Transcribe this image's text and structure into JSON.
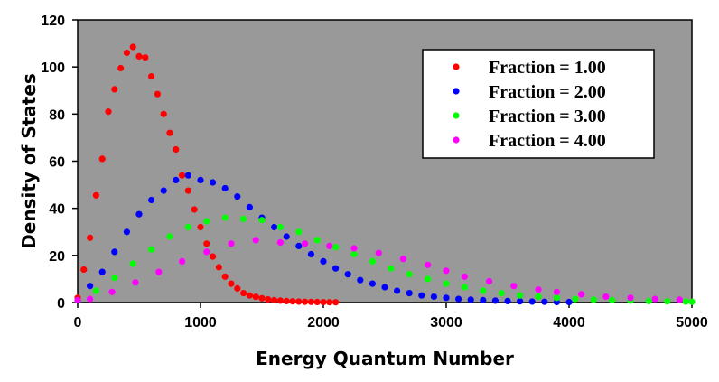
{
  "chart_data": {
    "type": "scatter",
    "title": "",
    "xlabel": "Energy Quantum Number",
    "ylabel": "Density of States",
    "xlim": [
      0,
      5000
    ],
    "ylim": [
      0,
      120
    ],
    "xticks": [
      0,
      1000,
      2000,
      3000,
      4000,
      5000
    ],
    "yticks": [
      0,
      20,
      40,
      60,
      80,
      100,
      120
    ],
    "plot_background": "#999999",
    "grid": false,
    "legend_position": "top-right",
    "series": [
      {
        "name": "Fraction = 1.00",
        "color": "#ff0000",
        "points": [
          [
            0,
            2
          ],
          [
            50,
            14
          ],
          [
            100,
            27.5
          ],
          [
            150,
            45.5
          ],
          [
            200,
            61
          ],
          [
            250,
            81
          ],
          [
            300,
            90.5
          ],
          [
            350,
            99.5
          ],
          [
            400,
            106
          ],
          [
            450,
            108.5
          ],
          [
            500,
            104.5
          ],
          [
            550,
            104
          ],
          [
            600,
            96
          ],
          [
            650,
            88.5
          ],
          [
            700,
            80
          ],
          [
            750,
            72
          ],
          [
            800,
            65
          ],
          [
            850,
            54
          ],
          [
            900,
            47.5
          ],
          [
            950,
            39.5
          ],
          [
            1000,
            32
          ],
          [
            1050,
            25
          ],
          [
            1100,
            19.5
          ],
          [
            1150,
            15
          ],
          [
            1200,
            11
          ],
          [
            1250,
            8
          ],
          [
            1300,
            6
          ],
          [
            1350,
            4
          ],
          [
            1400,
            3
          ],
          [
            1450,
            2.4
          ],
          [
            1500,
            1.8
          ],
          [
            1550,
            1.3
          ],
          [
            1600,
            1
          ],
          [
            1650,
            0.8
          ],
          [
            1700,
            0.6
          ],
          [
            1750,
            0.5
          ],
          [
            1800,
            0.4
          ],
          [
            1850,
            0.3
          ],
          [
            1900,
            0.25
          ],
          [
            1950,
            0.2
          ],
          [
            2000,
            0.15
          ],
          [
            2050,
            0.12
          ],
          [
            2100,
            0.1
          ]
        ]
      },
      {
        "name": "Fraction = 2.00",
        "color": "#0000ff",
        "points": [
          [
            0,
            1
          ],
          [
            100,
            7
          ],
          [
            200,
            13
          ],
          [
            300,
            21.5
          ],
          [
            400,
            30
          ],
          [
            500,
            37.5
          ],
          [
            600,
            43.5
          ],
          [
            700,
            47.5
          ],
          [
            800,
            52
          ],
          [
            900,
            54
          ],
          [
            1000,
            52
          ],
          [
            1100,
            51
          ],
          [
            1200,
            48.5
          ],
          [
            1300,
            45
          ],
          [
            1400,
            40.5
          ],
          [
            1500,
            36
          ],
          [
            1600,
            32
          ],
          [
            1700,
            28
          ],
          [
            1800,
            24
          ],
          [
            1900,
            20.5
          ],
          [
            2000,
            17.5
          ],
          [
            2100,
            14.5
          ],
          [
            2200,
            12
          ],
          [
            2300,
            9.5
          ],
          [
            2400,
            8
          ],
          [
            2500,
            6.5
          ],
          [
            2600,
            5
          ],
          [
            2700,
            4
          ],
          [
            2800,
            3
          ],
          [
            2900,
            2.5
          ],
          [
            3000,
            2
          ],
          [
            3100,
            1.5
          ],
          [
            3200,
            1.2
          ],
          [
            3300,
            1
          ],
          [
            3400,
            0.8
          ],
          [
            3500,
            0.6
          ],
          [
            3600,
            0.5
          ],
          [
            3700,
            0.4
          ],
          [
            3800,
            0.3
          ],
          [
            3900,
            0.2
          ],
          [
            4000,
            0.2
          ]
        ]
      },
      {
        "name": "Fraction = 3.00",
        "color": "#00ff00",
        "points": [
          [
            0,
            1
          ],
          [
            150,
            5
          ],
          [
            300,
            10.5
          ],
          [
            450,
            16.5
          ],
          [
            600,
            22.5
          ],
          [
            750,
            28
          ],
          [
            900,
            32
          ],
          [
            1050,
            34.5
          ],
          [
            1200,
            36
          ],
          [
            1350,
            35.5
          ],
          [
            1500,
            35
          ],
          [
            1650,
            32
          ],
          [
            1800,
            30
          ],
          [
            1950,
            26.5
          ],
          [
            2100,
            23.5
          ],
          [
            2250,
            20.5
          ],
          [
            2400,
            17.5
          ],
          [
            2550,
            14.5
          ],
          [
            2700,
            12
          ],
          [
            2850,
            10
          ],
          [
            3000,
            8
          ],
          [
            3150,
            6.5
          ],
          [
            3300,
            5
          ],
          [
            3450,
            4
          ],
          [
            3600,
            3
          ],
          [
            3750,
            2.5
          ],
          [
            3900,
            2
          ],
          [
            4050,
            1.5
          ],
          [
            4200,
            1.2
          ],
          [
            4350,
            1
          ],
          [
            4500,
            0.8
          ],
          [
            4650,
            0.6
          ],
          [
            4800,
            0.5
          ],
          [
            4950,
            0.4
          ],
          [
            5000,
            0.3
          ]
        ]
      },
      {
        "name": "Fraction = 4.00",
        "color": "#ff00ff",
        "points": [
          [
            0,
            1
          ],
          [
            100,
            1.5
          ],
          [
            280,
            4.5
          ],
          [
            470,
            8.5
          ],
          [
            660,
            13
          ],
          [
            850,
            17.5
          ],
          [
            1050,
            21.5
          ],
          [
            1250,
            25
          ],
          [
            1450,
            26.5
          ],
          [
            1650,
            25.5
          ],
          [
            1850,
            25
          ],
          [
            2050,
            24
          ],
          [
            2250,
            23
          ],
          [
            2450,
            21
          ],
          [
            2650,
            18.5
          ],
          [
            2850,
            16
          ],
          [
            3000,
            13.5
          ],
          [
            3150,
            11
          ],
          [
            3350,
            9
          ],
          [
            3550,
            7
          ],
          [
            3750,
            5.5
          ],
          [
            3900,
            4.5
          ],
          [
            4100,
            3.5
          ],
          [
            4300,
            2.5
          ],
          [
            4500,
            2
          ],
          [
            4700,
            1.5
          ],
          [
            4900,
            1.2
          ]
        ]
      }
    ]
  }
}
